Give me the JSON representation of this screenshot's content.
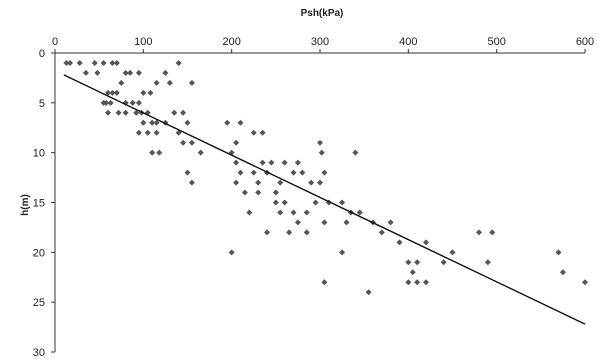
{
  "chart_data": {
    "type": "scatter",
    "xlabel": "Psh(kPa)",
    "ylabel": "h(m)",
    "xlim": [
      0,
      600
    ],
    "ylim": [
      0,
      30
    ],
    "x_ticks": [
      0,
      100,
      200,
      300,
      400,
      500,
      600
    ],
    "y_ticks": [
      0,
      5,
      10,
      15,
      20,
      25,
      30
    ],
    "x_axis_position": "top",
    "y_axis_inverted": true,
    "grid": false,
    "legend": "none",
    "series": [
      {
        "points": [
          [
            13,
            1
          ],
          [
            17,
            1
          ],
          [
            28,
            1
          ],
          [
            35,
            2
          ],
          [
            45,
            1
          ],
          [
            48,
            2
          ],
          [
            55,
            1
          ],
          [
            65,
            1
          ],
          [
            70,
            1
          ],
          [
            140,
            1
          ],
          [
            60,
            4
          ],
          [
            65,
            4
          ],
          [
            75,
            3
          ],
          [
            80,
            2
          ],
          [
            85,
            2
          ],
          [
            95,
            2
          ],
          [
            125,
            2
          ],
          [
            130,
            3
          ],
          [
            115,
            3
          ],
          [
            155,
            3
          ],
          [
            55,
            5
          ],
          [
            58,
            5
          ],
          [
            63,
            5
          ],
          [
            70,
            4
          ],
          [
            80,
            5
          ],
          [
            88,
            5
          ],
          [
            95,
            5
          ],
          [
            100,
            4
          ],
          [
            98,
            6
          ],
          [
            108,
            4
          ],
          [
            60,
            6
          ],
          [
            72,
            6
          ],
          [
            80,
            6
          ],
          [
            92,
            6
          ],
          [
            105,
            6
          ],
          [
            110,
            7
          ],
          [
            115,
            8
          ],
          [
            125,
            7
          ],
          [
            135,
            6
          ],
          [
            145,
            6
          ],
          [
            100,
            7
          ],
          [
            105,
            8
          ],
          [
            115,
            7
          ],
          [
            95,
            8
          ],
          [
            140,
            8
          ],
          [
            150,
            7
          ],
          [
            155,
            9
          ],
          [
            165,
            10
          ],
          [
            145,
            9
          ],
          [
            110,
            10
          ],
          [
            118,
            10
          ],
          [
            155,
            13
          ],
          [
            150,
            12
          ],
          [
            195,
            7
          ],
          [
            205,
            9
          ],
          [
            210,
            7
          ],
          [
            225,
            8
          ],
          [
            235,
            8
          ],
          [
            200,
            10
          ],
          [
            205,
            11
          ],
          [
            210,
            12
          ],
          [
            205,
            13
          ],
          [
            215,
            14
          ],
          [
            225,
            12
          ],
          [
            230,
            13
          ],
          [
            240,
            12
          ],
          [
            245,
            11
          ],
          [
            235,
            11
          ],
          [
            230,
            14
          ],
          [
            250,
            14
          ],
          [
            255,
            13
          ],
          [
            260,
            11
          ],
          [
            270,
            12
          ],
          [
            275,
            11
          ],
          [
            280,
            12
          ],
          [
            290,
            13
          ],
          [
            300,
            9
          ],
          [
            302,
            10
          ],
          [
            305,
            12
          ],
          [
            300,
            13
          ],
          [
            295,
            15
          ],
          [
            260,
            15
          ],
          [
            255,
            16
          ],
          [
            270,
            16
          ],
          [
            250,
            15
          ],
          [
            240,
            18
          ],
          [
            275,
            17
          ],
          [
            285,
            16
          ],
          [
            285,
            18
          ],
          [
            305,
            17
          ],
          [
            310,
            15
          ],
          [
            325,
            15
          ],
          [
            335,
            16
          ],
          [
            345,
            16
          ],
          [
            340,
            10
          ],
          [
            360,
            17
          ],
          [
            370,
            18
          ],
          [
            380,
            17
          ],
          [
            390,
            19
          ],
          [
            400,
            21
          ],
          [
            410,
            21
          ],
          [
            420,
            19
          ],
          [
            405,
            22
          ],
          [
            200,
            20
          ],
          [
            305,
            23
          ],
          [
            325,
            20
          ],
          [
            355,
            24
          ],
          [
            400,
            23
          ],
          [
            410,
            23
          ],
          [
            420,
            23
          ],
          [
            440,
            21
          ],
          [
            450,
            20
          ],
          [
            480,
            18
          ],
          [
            495,
            18
          ],
          [
            490,
            21
          ],
          [
            570,
            20
          ],
          [
            575,
            22
          ],
          [
            600,
            23
          ],
          [
            330,
            17
          ],
          [
            220,
            16
          ],
          [
            265,
            18
          ]
        ]
      }
    ],
    "trendline": {
      "x": [
        10,
        600
      ],
      "y": [
        2.2,
        27.2
      ]
    }
  }
}
